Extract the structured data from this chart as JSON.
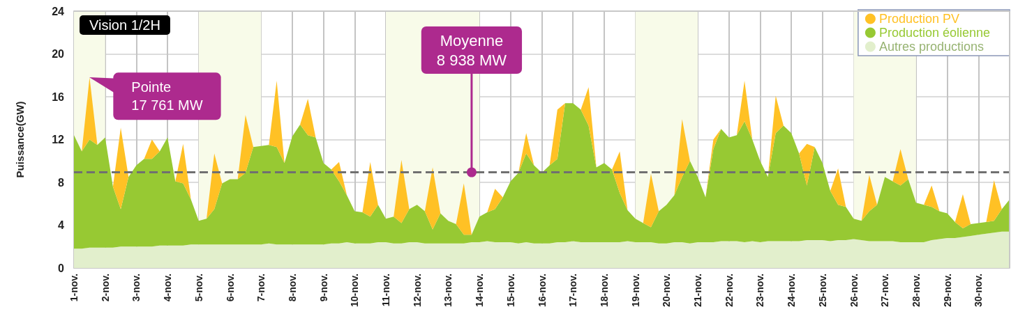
{
  "chart_data": {
    "type": "area",
    "ylabel": "Puissance(GW)",
    "stacked": true,
    "grid": true,
    "legend": "top right",
    "categories": [
      "1-nov.",
      null,
      null,
      null,
      "2-nov.",
      null,
      null,
      null,
      "3-nov.",
      null,
      null,
      null,
      "4-nov.",
      null,
      null,
      null,
      "5-nov.",
      null,
      null,
      null,
      "6-nov.",
      null,
      null,
      null,
      "7-nov.",
      null,
      null,
      null,
      "8-nov.",
      null,
      null,
      null,
      "9-nov.",
      null,
      null,
      null,
      "10-nov.",
      null,
      null,
      null,
      "11-nov.",
      null,
      null,
      null,
      "12-nov.",
      null,
      null,
      null,
      "13-nov.",
      null,
      null,
      null,
      "14-nov.",
      null,
      null,
      null,
      "15-nov.",
      null,
      null,
      null,
      "16-nov.",
      null,
      null,
      null,
      "17-nov.",
      null,
      null,
      null,
      "18-nov.",
      null,
      null,
      null,
      "19-nov.",
      null,
      null,
      null,
      "20-nov.",
      null,
      null,
      null,
      "21-nov.",
      null,
      null,
      null,
      "22-nov.",
      null,
      null,
      null,
      "23-nov.",
      null,
      null,
      null,
      "24-nov.",
      null,
      null,
      null,
      "25-nov.",
      null,
      null,
      null,
      "26-nov.",
      null,
      null,
      null,
      "27-nov.",
      null,
      null,
      null,
      "28-nov.",
      null,
      null,
      null,
      "29-nov.",
      null,
      null,
      null,
      "30-nov.",
      null,
      null,
      null,
      null
    ],
    "series": [
      {
        "name": "Autres productions",
        "color": "#e2efcc",
        "values": [
          1.8,
          1.8,
          1.9,
          1.9,
          1.9,
          1.9,
          2.0,
          2.0,
          2.0,
          2.0,
          2.0,
          2.1,
          2.1,
          2.1,
          2.1,
          2.2,
          2.2,
          2.2,
          2.2,
          2.2,
          2.2,
          2.2,
          2.2,
          2.2,
          2.2,
          2.3,
          2.2,
          2.2,
          2.2,
          2.2,
          2.2,
          2.2,
          2.2,
          2.3,
          2.3,
          2.4,
          2.3,
          2.3,
          2.3,
          2.4,
          2.4,
          2.3,
          2.3,
          2.4,
          2.4,
          2.3,
          2.3,
          2.3,
          2.3,
          2.3,
          2.3,
          2.4,
          2.4,
          2.5,
          2.4,
          2.4,
          2.4,
          2.3,
          2.4,
          2.3,
          2.3,
          2.3,
          2.4,
          2.4,
          2.5,
          2.4,
          2.4,
          2.4,
          2.4,
          2.4,
          2.4,
          2.5,
          2.4,
          2.4,
          2.4,
          2.3,
          2.3,
          2.4,
          2.4,
          2.3,
          2.4,
          2.4,
          2.4,
          2.5,
          2.5,
          2.5,
          2.4,
          2.5,
          2.4,
          2.5,
          2.5,
          2.5,
          2.5,
          2.5,
          2.6,
          2.6,
          2.6,
          2.5,
          2.6,
          2.6,
          2.7,
          2.6,
          2.5,
          2.5,
          2.5,
          2.5,
          2.4,
          2.4,
          2.4,
          2.4,
          2.6,
          2.7,
          2.8,
          2.8,
          2.9,
          3.0,
          3.1,
          3.2,
          3.3,
          3.4,
          3.4
        ]
      },
      {
        "name": "Production éolienne",
        "color": "#97c933",
        "values": [
          10.6,
          9.1,
          10.1,
          9.6,
          10.3,
          5.7,
          3.5,
          6.5,
          7.6,
          8.2,
          8.2,
          8.8,
          10.1,
          6.0,
          5.8,
          4.2,
          2.2,
          2.4,
          3.3,
          5.7,
          6.1,
          6.1,
          6.7,
          9.1,
          9.2,
          9.2,
          9.1,
          7.6,
          10.1,
          11.2,
          10.2,
          10.0,
          7.6,
          6.9,
          5.8,
          4.4,
          3.0,
          2.9,
          2.5,
          3.5,
          2.2,
          2.5,
          1.9,
          3.1,
          3.5,
          3.0,
          1.3,
          2.8,
          2.1,
          1.8,
          0.8,
          0.7,
          2.4,
          2.7,
          3.1,
          4.2,
          5.7,
          6.6,
          8.3,
          7.3,
          6.6,
          7.3,
          7.8,
          13.0,
          12.9,
          12.4,
          10.9,
          7.0,
          7.4,
          6.8,
          4.6,
          2.9,
          2.2,
          1.8,
          1.4,
          3.0,
          3.6,
          4.4,
          6.1,
          7.7,
          6.1,
          4.2,
          8.7,
          10.5,
          9.7,
          9.9,
          11.3,
          9.5,
          7.6,
          6.0,
          10.1,
          10.8,
          10.1,
          8.2,
          5.1,
          8.7,
          7.2,
          4.7,
          3.3,
          3.1,
          1.9,
          1.8,
          2.8,
          3.4,
          6.0,
          5.6,
          5.3,
          5.9,
          3.7,
          3.5,
          3.1,
          2.6,
          2.3,
          1.5,
          0.8,
          1.1,
          1.1,
          1.1,
          1.1,
          2.1,
          3.0
        ]
      },
      {
        "name": "Production PV",
        "color": "#ffc125",
        "values": [
          0,
          0,
          5.8,
          0,
          0,
          0,
          7.6,
          0,
          0,
          0,
          1.8,
          0,
          0,
          0,
          3.7,
          0,
          0,
          0,
          5.2,
          0,
          0,
          0,
          5.4,
          0,
          0,
          0,
          6.2,
          0,
          0,
          0,
          3.4,
          0,
          0,
          0,
          1.8,
          0,
          0,
          0,
          5.1,
          0,
          0,
          0,
          5.9,
          0,
          0,
          0,
          5.8,
          0,
          0,
          0,
          4.8,
          0,
          0,
          0,
          1.9,
          0,
          0,
          0,
          1.9,
          0,
          0,
          0,
          4.6,
          0,
          0,
          0,
          3.6,
          0,
          0,
          0,
          3.9,
          0,
          0,
          0,
          5.0,
          0,
          0,
          0,
          5.4,
          0,
          0,
          0,
          0.9,
          0,
          0,
          0,
          3.8,
          0,
          0,
          0,
          3.5,
          0,
          0,
          0,
          3.9,
          0,
          0,
          0,
          3.4,
          0,
          0,
          0,
          3.4,
          0,
          0,
          0,
          3.4,
          0,
          0,
          0,
          2.0,
          0,
          0,
          0,
          3.2,
          0,
          0,
          0,
          3.8,
          0,
          0
        ]
      }
    ],
    "ylim": [
      0,
      24
    ],
    "yticks": [
      0,
      4,
      8,
      12,
      16,
      20,
      24
    ],
    "ref_lines": [
      {
        "axis": "y",
        "value": 8.938,
        "label": "Moyenne\n8 938 MW",
        "color": "#707070",
        "line_style": "dashed"
      }
    ],
    "bands": [
      {
        "axis": "x",
        "from": "1-nov.",
        "to": "2-nov.",
        "color": "#f8fbe9"
      },
      {
        "axis": "x",
        "from": "5-nov.",
        "to": "7-nov.",
        "color": "#f8fbe9"
      },
      {
        "axis": "x",
        "from": "11-nov.",
        "to": "14-nov.",
        "color": "#f8fbe9"
      },
      {
        "axis": "x",
        "from": "19-nov.",
        "to": "21-nov.",
        "color": "#f8fbe9"
      },
      {
        "axis": "x",
        "from": "26-nov.",
        "to": "28-nov.",
        "color": "#f8fbe9"
      }
    ],
    "annotations": [
      "Vision 1/2H",
      "Pointe\n17 761 MW"
    ]
  }
}
